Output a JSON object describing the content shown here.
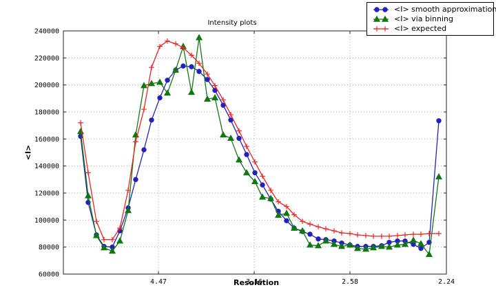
{
  "figure": {
    "background": "#ffffff"
  },
  "chart_data": {
    "type": "line",
    "title": "Intensity plots",
    "xlabel": "Resolution",
    "ylabel": "<I>",
    "ylim": [
      60000,
      240000
    ],
    "y_ticks": [
      60000,
      80000,
      100000,
      120000,
      140000,
      160000,
      180000,
      200000,
      220000,
      240000
    ],
    "x_ticks": [
      {
        "label": "4.47",
        "pos": 0.2482
      },
      {
        "label": "3.16",
        "pos": 0.4982
      },
      {
        "label": "2.58",
        "pos": 0.7482
      },
      {
        "label": "2.24",
        "pos": 1.0
      }
    ],
    "grid": "dotted",
    "legend_position": "top-right",
    "x": [
      0.045,
      0.0647,
      0.0863,
      0.1061,
      0.1277,
      0.1475,
      0.1691,
      0.1888,
      0.2104,
      0.2302,
      0.2518,
      0.2716,
      0.2932,
      0.3129,
      0.3345,
      0.3543,
      0.3759,
      0.3957,
      0.4173,
      0.4371,
      0.4586,
      0.4784,
      0.5,
      0.5198,
      0.5414,
      0.5612,
      0.5827,
      0.6025,
      0.6241,
      0.6439,
      0.6655,
      0.6853,
      0.7068,
      0.7266,
      0.7482,
      0.768,
      0.7896,
      0.8094,
      0.8309,
      0.8507,
      0.8723,
      0.8921,
      0.9137,
      0.9335,
      0.955,
      0.9802
    ],
    "series": [
      {
        "name": "<I> smooth approximation",
        "color": "#2222bb",
        "marker": "circle",
        "values": [
          162000,
          113000,
          89000,
          80500,
          80000,
          92000,
          109000,
          130000,
          152000,
          174000,
          190500,
          203500,
          211000,
          214000,
          213500,
          210000,
          204000,
          196000,
          185000,
          174000,
          160500,
          148500,
          135000,
          126000,
          115500,
          106500,
          99500,
          94000,
          91500,
          89500,
          86000,
          85500,
          84500,
          83000,
          81500,
          80500,
          80500,
          80500,
          81000,
          83500,
          84500,
          84500,
          82000,
          79000,
          83500,
          173500
        ]
      },
      {
        "name": "<I> via binning",
        "color": "#117711",
        "marker": "triangle",
        "values": [
          165500,
          118000,
          88500,
          79500,
          77000,
          84500,
          107000,
          163000,
          199500,
          201000,
          202000,
          194000,
          211000,
          228500,
          194500,
          235000,
          189500,
          190500,
          163000,
          160500,
          144500,
          135000,
          128500,
          117000,
          116000,
          103500,
          105000,
          94000,
          92000,
          81500,
          81000,
          84500,
          82000,
          80500,
          81500,
          79000,
          78500,
          79500,
          80500,
          80000,
          81500,
          82000,
          85000,
          82500,
          74500,
          132000
        ]
      },
      {
        "name": "<I> expected",
        "color": "#ee2222",
        "marker": "plus",
        "values": [
          172000,
          135000,
          99000,
          85500,
          85500,
          94000,
          122000,
          158000,
          182000,
          213000,
          228500,
          232500,
          230500,
          227500,
          222000,
          216000,
          208000,
          199500,
          189000,
          178000,
          166000,
          154500,
          143000,
          132500,
          122000,
          113500,
          110000,
          104000,
          99000,
          97000,
          95000,
          93500,
          92000,
          90500,
          90000,
          89000,
          88500,
          88000,
          88000,
          88000,
          88500,
          89000,
          89500,
          89500,
          90000,
          90000
        ]
      }
    ]
  }
}
